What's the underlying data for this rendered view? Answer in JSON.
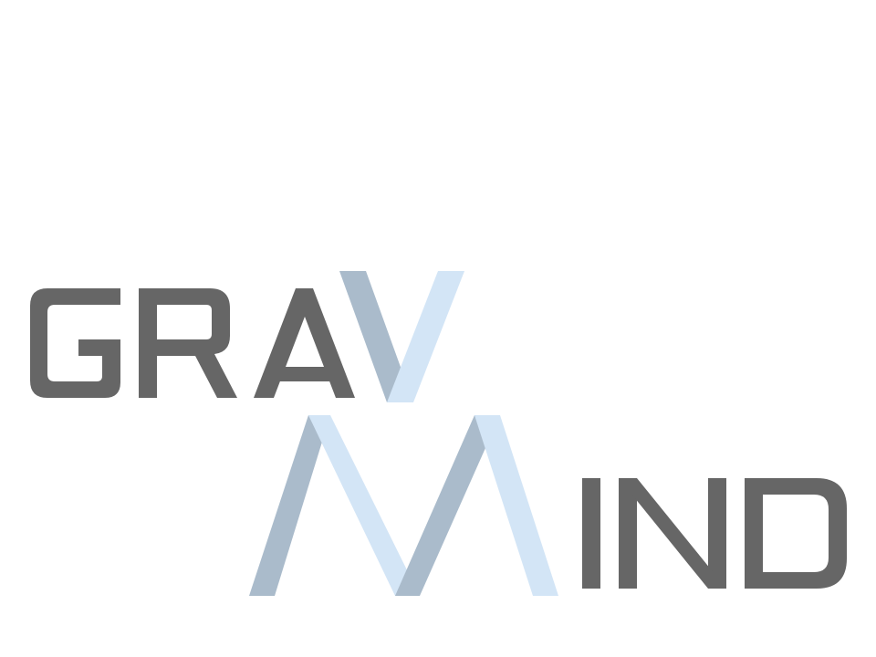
{
  "logo": {
    "name": "GRAVMIND",
    "colors": {
      "dark_gray": "#666666",
      "steel_blue": "#aabbcb",
      "light_blue": "#d3e5f6",
      "background": "#ffffff"
    }
  }
}
